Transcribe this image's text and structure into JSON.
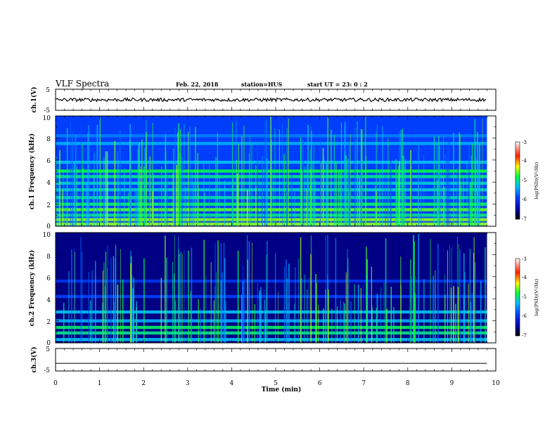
{
  "header": {
    "title": "VLF Spectra",
    "date": "Feb. 22, 2018",
    "station": "station=HUS",
    "start": "start  UT =   23: 0  : 2"
  },
  "chart_data": [
    {
      "type": "line",
      "panel": "ch1-waveform",
      "ylabel": "ch.1(V)",
      "ylim": [
        -5,
        5
      ],
      "yticks": [
        "5",
        "-5"
      ],
      "xlim": [
        0,
        10
      ],
      "x": [
        0,
        9.8
      ],
      "y": [
        0,
        0
      ],
      "style": "noisy black trace"
    },
    {
      "type": "heatmap",
      "panel": "ch1-spectrogram",
      "ylabel": "ch.1 Frequency (kHz)",
      "ylim": [
        0,
        10
      ],
      "yticks": [
        "0",
        "2",
        "4",
        "6",
        "8",
        "10"
      ],
      "xlim": [
        0,
        10
      ],
      "data_extent_min": 9.8,
      "colorbar": {
        "label": "log(PSD)(V²/Hz)",
        "range": [
          -7,
          -3
        ],
        "ticks": [
          "-3",
          "-4",
          "-5",
          "-6",
          "-7"
        ]
      },
      "bands": [
        {
          "f": 0.2,
          "level": -4.5
        },
        {
          "f": 0.6,
          "level": -4.5
        },
        {
          "f": 1.0,
          "level": -5.0
        },
        {
          "f": 1.5,
          "level": -4.6
        },
        {
          "f": 2.0,
          "level": -4.9
        },
        {
          "f": 2.6,
          "level": -5.1
        },
        {
          "f": 3.3,
          "level": -5.2
        },
        {
          "f": 3.9,
          "level": -5.2
        },
        {
          "f": 4.5,
          "level": -5.0
        },
        {
          "f": 5.0,
          "level": -4.8
        },
        {
          "f": 5.8,
          "level": -5.3
        },
        {
          "f": 7.5,
          "level": -5.4
        },
        {
          "f": 8.2,
          "level": -5.6
        }
      ]
    },
    {
      "type": "heatmap",
      "panel": "ch2-spectrogram",
      "ylabel": "ch.2 Frequency (kHz)",
      "ylim": [
        0,
        10
      ],
      "yticks": [
        "0",
        "2",
        "4",
        "6",
        "8",
        "10"
      ],
      "xlim": [
        0,
        10
      ],
      "data_extent_min": 9.8,
      "colorbar": {
        "label": "log(PSD)(V²/Hz)",
        "range": [
          -7,
          -3
        ],
        "ticks": [
          "-3",
          "-4",
          "-5",
          "-6",
          "-7"
        ]
      },
      "bands": [
        {
          "f": 0.3,
          "level": -5.3
        },
        {
          "f": 0.9,
          "level": -5.0
        },
        {
          "f": 1.4,
          "level": -4.9
        },
        {
          "f": 2.0,
          "level": -5.4
        },
        {
          "f": 2.8,
          "level": -5.3
        },
        {
          "f": 4.2,
          "level": -5.9
        },
        {
          "f": 5.6,
          "level": -6.0
        }
      ]
    },
    {
      "type": "line",
      "panel": "ch3-waveform",
      "ylabel": "ch.3(V)",
      "ylim": [
        -5,
        5
      ],
      "yticks": [
        "5",
        "-5"
      ],
      "xlim": [
        0,
        10
      ],
      "x": [
        0,
        9.8
      ],
      "y": [
        -1.6,
        -1.6
      ],
      "xlabel": "Time  (min)",
      "xticks": [
        "0",
        "1",
        "2",
        "3",
        "4",
        "5",
        "6",
        "7",
        "8",
        "9",
        "10"
      ]
    }
  ],
  "colors": {
    "background": "#ffffff",
    "trace": "#000000",
    "spectrogram_floor": "#00003c"
  }
}
